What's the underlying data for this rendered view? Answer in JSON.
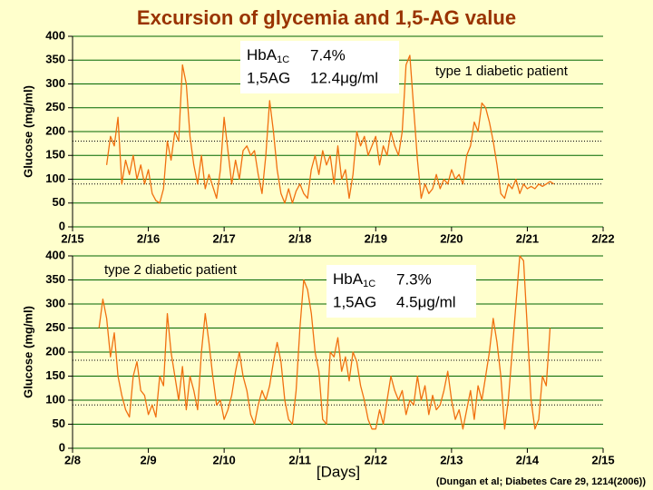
{
  "source": "(Dungan et al; Diabetes Care 29, 1214(2006))",
  "chart_data": [
    {
      "type": "line",
      "title": "Excursion of glycemia and 1,5-AG value",
      "y_label": "Glucose (mg/ml)",
      "patient": "type 1 diabetic patient",
      "hba1c": {
        "label": "HbA",
        "subscript": "1C",
        "value": "7.4%"
      },
      "ag": {
        "label": "1,5AG",
        "value": "12.4μg/ml"
      },
      "color": "#f07010",
      "grid": true,
      "reference_lines": [
        180,
        90
      ],
      "ylim": [
        0,
        400
      ],
      "yticks": [
        0,
        50,
        100,
        150,
        200,
        250,
        300,
        350,
        400
      ],
      "xlim": [
        15,
        22
      ],
      "xticks": [
        {
          "value": 15,
          "label": "2/15"
        },
        {
          "value": 16,
          "label": "2/16"
        },
        {
          "value": 17,
          "label": "2/17"
        },
        {
          "value": 18,
          "label": "2/18"
        },
        {
          "value": 19,
          "label": "2/19"
        },
        {
          "value": 20,
          "label": "2/20"
        },
        {
          "value": 21,
          "label": "2/21"
        },
        {
          "value": 22,
          "label": "2/22"
        }
      ],
      "x": [
        15.45,
        15.5,
        15.55,
        15.6,
        15.65,
        15.7,
        15.75,
        15.8,
        15.85,
        15.9,
        15.95,
        16.0,
        16.05,
        16.1,
        16.15,
        16.2,
        16.25,
        16.3,
        16.35,
        16.4,
        16.45,
        16.5,
        16.55,
        16.6,
        16.65,
        16.7,
        16.75,
        16.8,
        16.9,
        16.95,
        17.0,
        17.05,
        17.1,
        17.15,
        17.2,
        17.25,
        17.3,
        17.35,
        17.4,
        17.45,
        17.5,
        17.55,
        17.6,
        17.65,
        17.7,
        17.75,
        17.8,
        17.85,
        17.9,
        17.95,
        18.0,
        18.05,
        18.1,
        18.15,
        18.2,
        18.25,
        18.3,
        18.35,
        18.4,
        18.45,
        18.5,
        18.55,
        18.6,
        18.65,
        18.7,
        18.75,
        18.8,
        18.85,
        18.9,
        18.95,
        19.0,
        19.05,
        19.1,
        19.15,
        19.2,
        19.25,
        19.3,
        19.35,
        19.4,
        19.45,
        19.5,
        19.55,
        19.6,
        19.65,
        19.7,
        19.75,
        19.8,
        19.85,
        19.9,
        19.95,
        20.0,
        20.05,
        20.1,
        20.15,
        20.2,
        20.25,
        20.3,
        20.35,
        20.4,
        20.45,
        20.5,
        20.55,
        20.6,
        20.65,
        20.7,
        20.75,
        20.8,
        20.85,
        20.9,
        20.95,
        21.0,
        21.05,
        21.1,
        21.15,
        21.2,
        21.25,
        21.3,
        21.35
      ],
      "values": [
        130,
        190,
        170,
        230,
        90,
        140,
        110,
        150,
        100,
        130,
        90,
        120,
        70,
        55,
        50,
        80,
        180,
        140,
        200,
        180,
        340,
        300,
        190,
        130,
        90,
        150,
        80,
        110,
        60,
        120,
        230,
        160,
        90,
        140,
        100,
        160,
        170,
        150,
        160,
        110,
        70,
        150,
        265,
        200,
        120,
        70,
        50,
        80,
        50,
        75,
        90,
        70,
        60,
        120,
        150,
        110,
        160,
        130,
        150,
        90,
        170,
        100,
        120,
        60,
        110,
        200,
        170,
        190,
        150,
        170,
        190,
        130,
        170,
        150,
        200,
        170,
        150,
        200,
        340,
        360,
        250,
        140,
        60,
        90,
        70,
        80,
        110,
        80,
        100,
        90,
        120,
        100,
        110,
        90,
        150,
        170,
        220,
        200,
        260,
        250,
        220,
        180,
        130,
        70,
        60,
        90,
        80,
        100,
        70,
        90,
        80,
        85,
        80,
        90,
        85,
        90,
        95,
        90
      ]
    },
    {
      "type": "line",
      "y_label": "Glucose (mg/ml)",
      "x_label": "[Days]",
      "patient": "type 2 diabetic patient",
      "hba1c": {
        "label": "HbA",
        "subscript": "1C",
        "value": "7.3%"
      },
      "ag": {
        "label": "1,5AG",
        "value": "4.5μg/ml"
      },
      "color": "#f07010",
      "grid": true,
      "reference_lines": [
        183,
        90
      ],
      "ylim": [
        0,
        400
      ],
      "yticks": [
        0,
        50,
        100,
        150,
        200,
        250,
        300,
        350,
        400
      ],
      "xlim": [
        8,
        15
      ],
      "xticks": [
        {
          "value": 8,
          "label": "2/8"
        },
        {
          "value": 9,
          "label": "2/9"
        },
        {
          "value": 10,
          "label": "2/10"
        },
        {
          "value": 11,
          "label": "2/11"
        },
        {
          "value": 12,
          "label": "2/12"
        },
        {
          "value": 13,
          "label": "2/13"
        },
        {
          "value": 14,
          "label": "2/14"
        },
        {
          "value": 15,
          "label": "2/15"
        }
      ],
      "x": [
        8.35,
        8.4,
        8.45,
        8.5,
        8.55,
        8.6,
        8.65,
        8.7,
        8.75,
        8.8,
        8.85,
        8.9,
        8.95,
        9.0,
        9.05,
        9.1,
        9.15,
        9.2,
        9.25,
        9.3,
        9.35,
        9.4,
        9.45,
        9.5,
        9.55,
        9.6,
        9.65,
        9.7,
        9.75,
        9.8,
        9.85,
        9.9,
        9.95,
        10.0,
        10.05,
        10.1,
        10.15,
        10.2,
        10.25,
        10.3,
        10.35,
        10.4,
        10.45,
        10.5,
        10.55,
        10.6,
        10.65,
        10.7,
        10.75,
        10.8,
        10.85,
        10.9,
        10.95,
        11.0,
        11.05,
        11.1,
        11.15,
        11.2,
        11.25,
        11.3,
        11.35,
        11.4,
        11.45,
        11.5,
        11.55,
        11.6,
        11.65,
        11.7,
        11.75,
        11.8,
        11.85,
        11.9,
        11.95,
        12.0,
        12.05,
        12.1,
        12.15,
        12.2,
        12.25,
        12.3,
        12.35,
        12.4,
        12.45,
        12.5,
        12.55,
        12.6,
        12.65,
        12.7,
        12.75,
        12.8,
        12.85,
        12.9,
        12.95,
        13.0,
        13.05,
        13.1,
        13.15,
        13.2,
        13.25,
        13.3,
        13.35,
        13.4,
        13.45,
        13.5,
        13.55,
        13.6,
        13.65,
        13.7,
        13.75,
        13.8,
        13.85,
        13.9,
        13.95,
        14.0,
        14.05,
        14.1,
        14.15,
        14.2,
        14.25,
        14.3
      ],
      "values": [
        250,
        310,
        270,
        190,
        240,
        150,
        110,
        80,
        65,
        150,
        180,
        120,
        110,
        70,
        90,
        65,
        150,
        130,
        280,
        200,
        150,
        100,
        170,
        80,
        150,
        120,
        80,
        200,
        280,
        220,
        150,
        90,
        100,
        60,
        80,
        110,
        160,
        200,
        150,
        120,
        70,
        50,
        90,
        120,
        100,
        130,
        180,
        220,
        180,
        100,
        60,
        50,
        120,
        250,
        350,
        330,
        280,
        200,
        160,
        60,
        50,
        200,
        190,
        230,
        160,
        190,
        140,
        200,
        180,
        130,
        100,
        60,
        40,
        40,
        80,
        50,
        100,
        150,
        120,
        100,
        120,
        70,
        100,
        90,
        150,
        100,
        130,
        70,
        110,
        80,
        90,
        120,
        160,
        100,
        60,
        80,
        40,
        80,
        120,
        60,
        130,
        100,
        150,
        200,
        270,
        220,
        150,
        40,
        100,
        200,
        300,
        400,
        390,
        250,
        100,
        40,
        60,
        150,
        130,
        250
      ]
    }
  ]
}
